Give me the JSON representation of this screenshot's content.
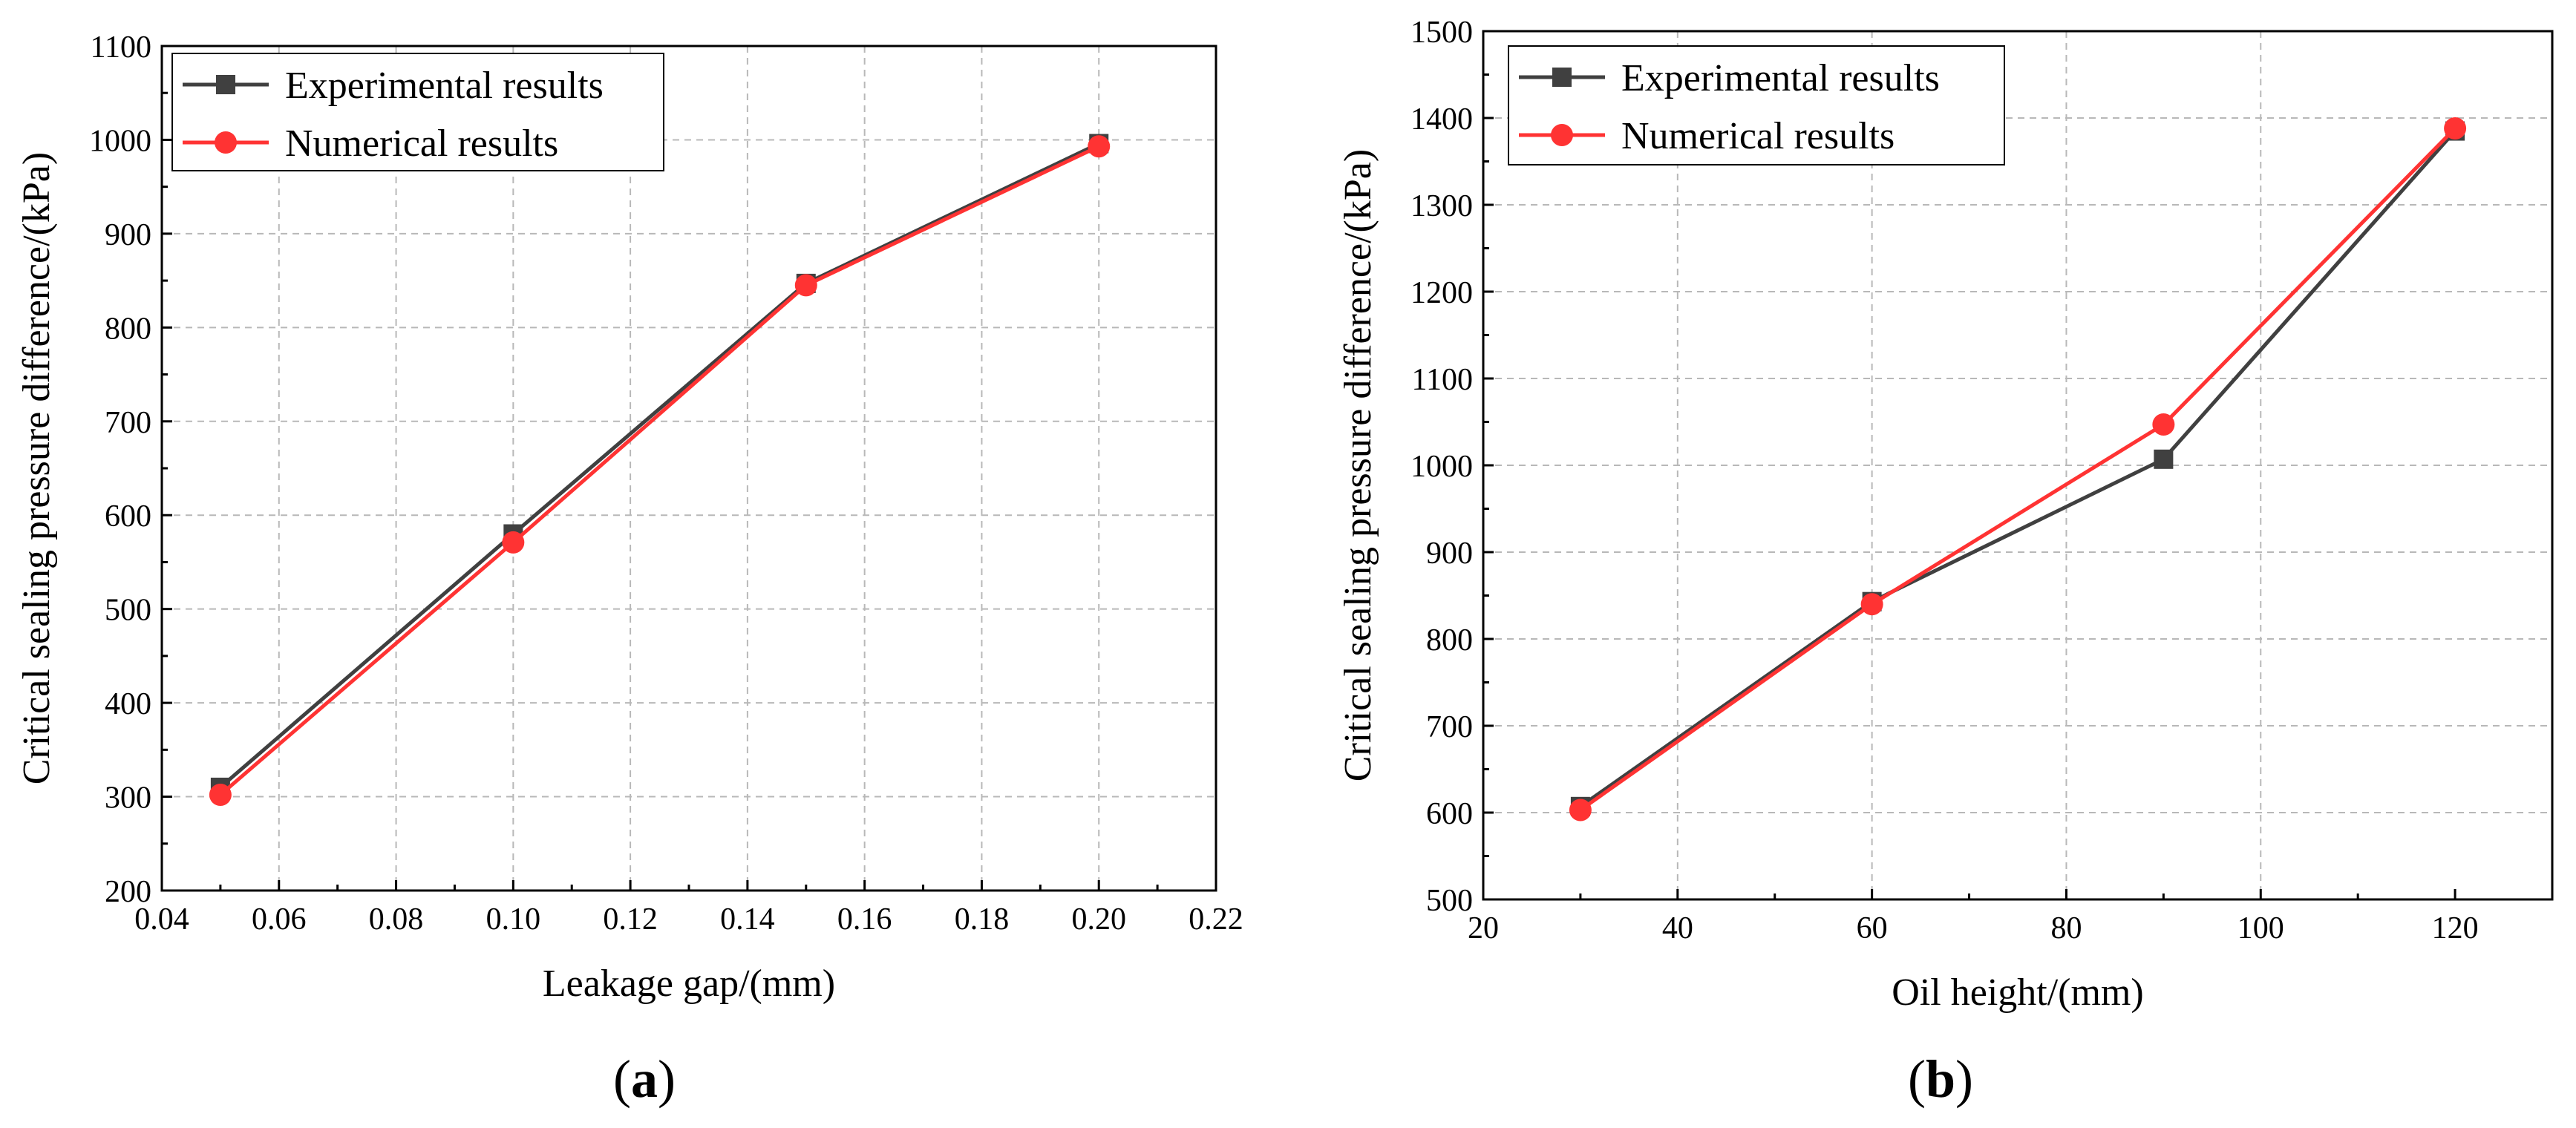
{
  "chart_data": [
    {
      "type": "line",
      "panel_label": "a",
      "xlabel": "Leakage gap/(mm)",
      "ylabel": "Critical sealing pressure difference/(kPa)",
      "xlim": [
        0.04,
        0.22
      ],
      "ylim": [
        200,
        1100
      ],
      "xticks": [
        "0.04",
        "0.06",
        "0.08",
        "0.10",
        "0.12",
        "0.14",
        "0.16",
        "0.18",
        "0.20",
        "0.22"
      ],
      "yticks": [
        "200",
        "300",
        "400",
        "500",
        "600",
        "700",
        "800",
        "900",
        "1000",
        "1100"
      ],
      "x": [
        0.05,
        0.1,
        0.15,
        0.2
      ],
      "series": [
        {
          "name": "Experimental results",
          "marker": "square",
          "color": "#404040",
          "values": [
            310,
            580,
            847,
            996
          ]
        },
        {
          "name": "Numerical results",
          "marker": "circle",
          "color": "#ff3333",
          "values": [
            302,
            571,
            845,
            993
          ]
        }
      ],
      "grid": true,
      "legend": "top-left"
    },
    {
      "type": "line",
      "panel_label": "b",
      "xlabel": "Oil height/(mm)",
      "ylabel": "Critical sealing pressure difference/(kPa)",
      "xlim": [
        20,
        130
      ],
      "ylim": [
        500,
        1500
      ],
      "xticks": [
        "20",
        "40",
        "60",
        "80",
        "100",
        "120"
      ],
      "yticks": [
        "500",
        "600",
        "700",
        "800",
        "900",
        "1000",
        "1100",
        "1200",
        "1300",
        "1400",
        "1500"
      ],
      "x": [
        30,
        60,
        90,
        120
      ],
      "series": [
        {
          "name": "Experimental results",
          "marker": "square",
          "color": "#404040",
          "values": [
            607,
            843,
            1007,
            1385
          ]
        },
        {
          "name": "Numerical results",
          "marker": "circle",
          "color": "#ff3333",
          "values": [
            603,
            840,
            1047,
            1388
          ]
        }
      ],
      "grid": true,
      "legend": "top-left"
    }
  ]
}
